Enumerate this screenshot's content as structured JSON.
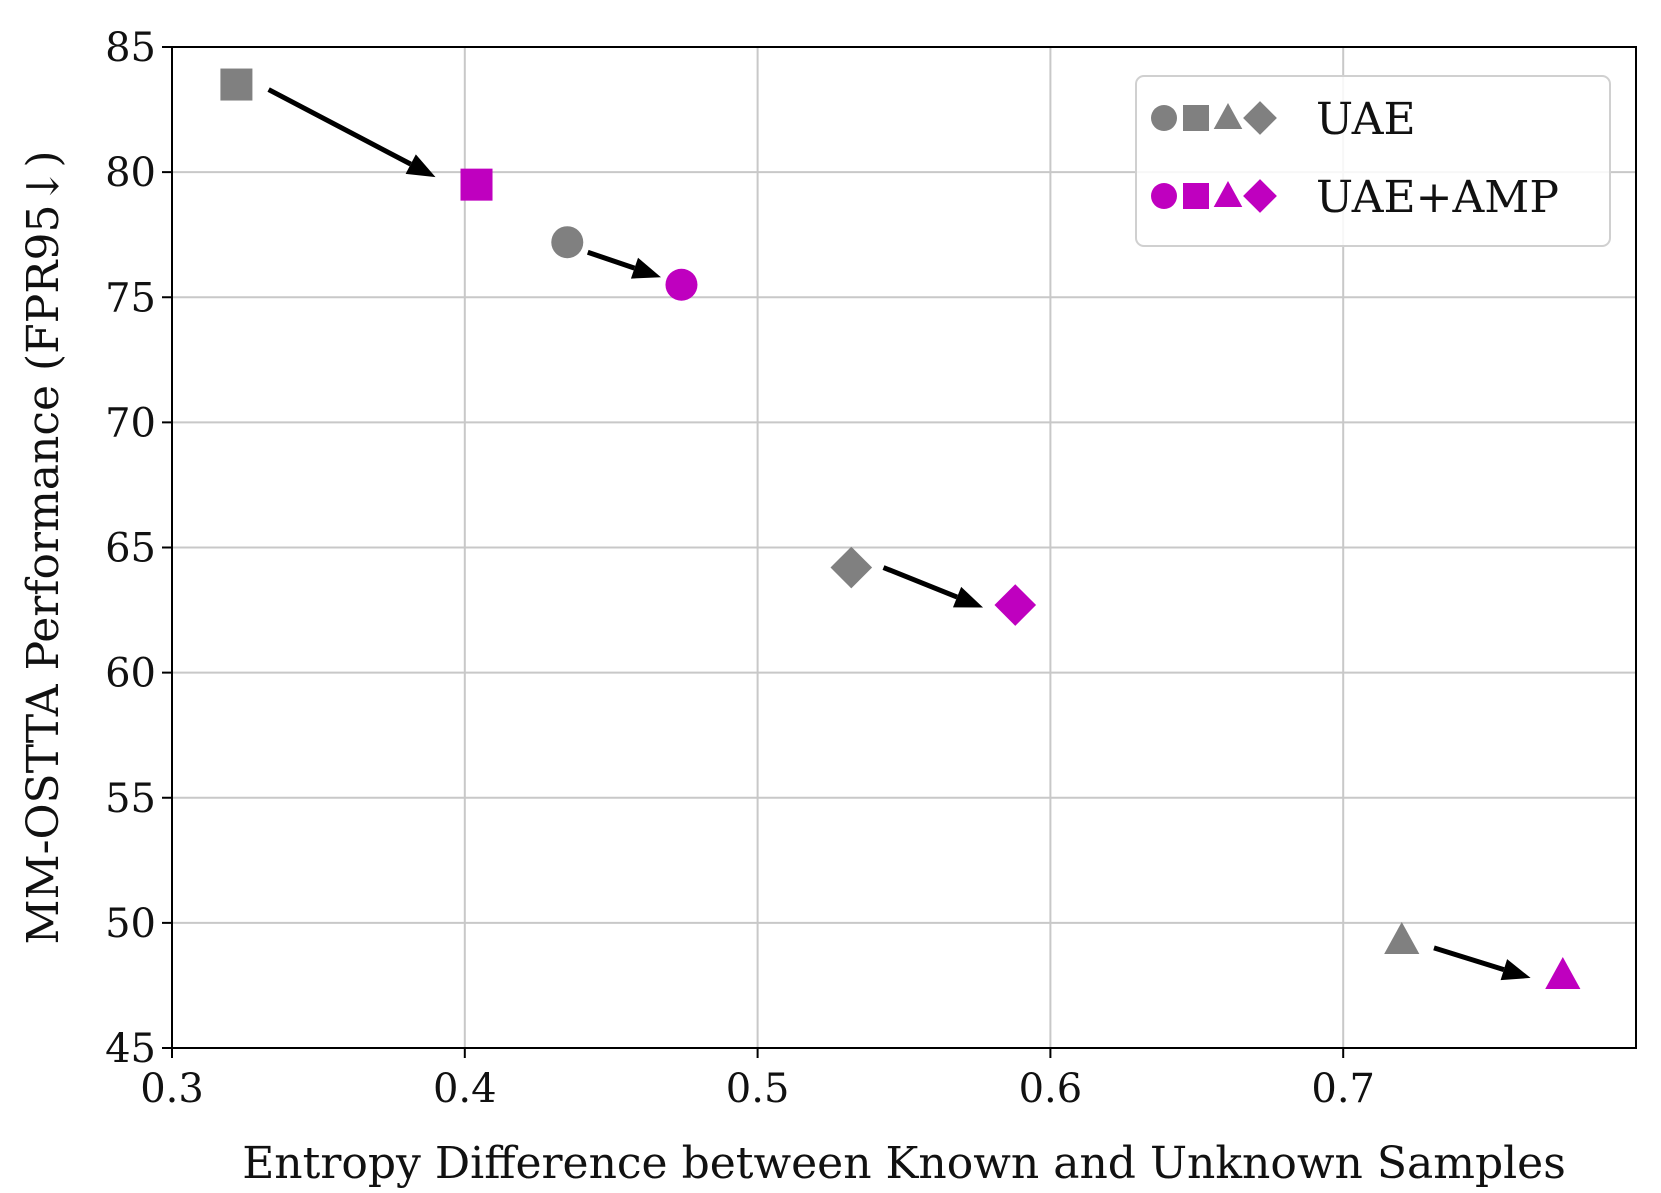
{
  "chart_data": {
    "type": "scatter",
    "title": "",
    "xlabel": "Entropy Difference between Known and Unknown Samples",
    "ylabel": "MM-OSTTA Performance (FPR95↓)",
    "xlim": [
      0.3,
      0.8
    ],
    "ylim": [
      45,
      85
    ],
    "xticks": [
      0.3,
      0.4,
      0.5,
      0.6,
      0.7
    ],
    "yticks": [
      45,
      50,
      55,
      60,
      65,
      70,
      75,
      80,
      85
    ],
    "grid": true,
    "legend_position": "top-right",
    "colors": {
      "UAE": "#808080",
      "UAE+AMP": "#bf00bf",
      "arrow": "#000000"
    },
    "series": [
      {
        "name": "UAE",
        "color": "#808080",
        "points": [
          {
            "marker": "square",
            "x": 0.322,
            "y": 83.5
          },
          {
            "marker": "circle",
            "x": 0.435,
            "y": 77.2
          },
          {
            "marker": "diamond",
            "x": 0.532,
            "y": 64.2
          },
          {
            "marker": "triangle",
            "x": 0.72,
            "y": 49.3
          }
        ]
      },
      {
        "name": "UAE+AMP",
        "color": "#bf00bf",
        "points": [
          {
            "marker": "square",
            "x": 0.404,
            "y": 79.5
          },
          {
            "marker": "circle",
            "x": 0.474,
            "y": 75.5
          },
          {
            "marker": "diamond",
            "x": 0.588,
            "y": 62.7
          },
          {
            "marker": "triangle",
            "x": 0.775,
            "y": 47.9
          }
        ]
      }
    ],
    "arrows": [
      {
        "from": [
          0.333,
          83.3
        ],
        "to": [
          0.39,
          79.8
        ]
      },
      {
        "from": [
          0.442,
          76.8
        ],
        "to": [
          0.467,
          75.8
        ]
      },
      {
        "from": [
          0.543,
          64.2
        ],
        "to": [
          0.577,
          62.6
        ]
      },
      {
        "from": [
          0.731,
          49.0
        ],
        "to": [
          0.764,
          47.8
        ]
      }
    ],
    "legend": [
      {
        "label": "UAE",
        "color": "#808080"
      },
      {
        "label": "UAE+AMP",
        "color": "#bf00bf"
      }
    ]
  }
}
